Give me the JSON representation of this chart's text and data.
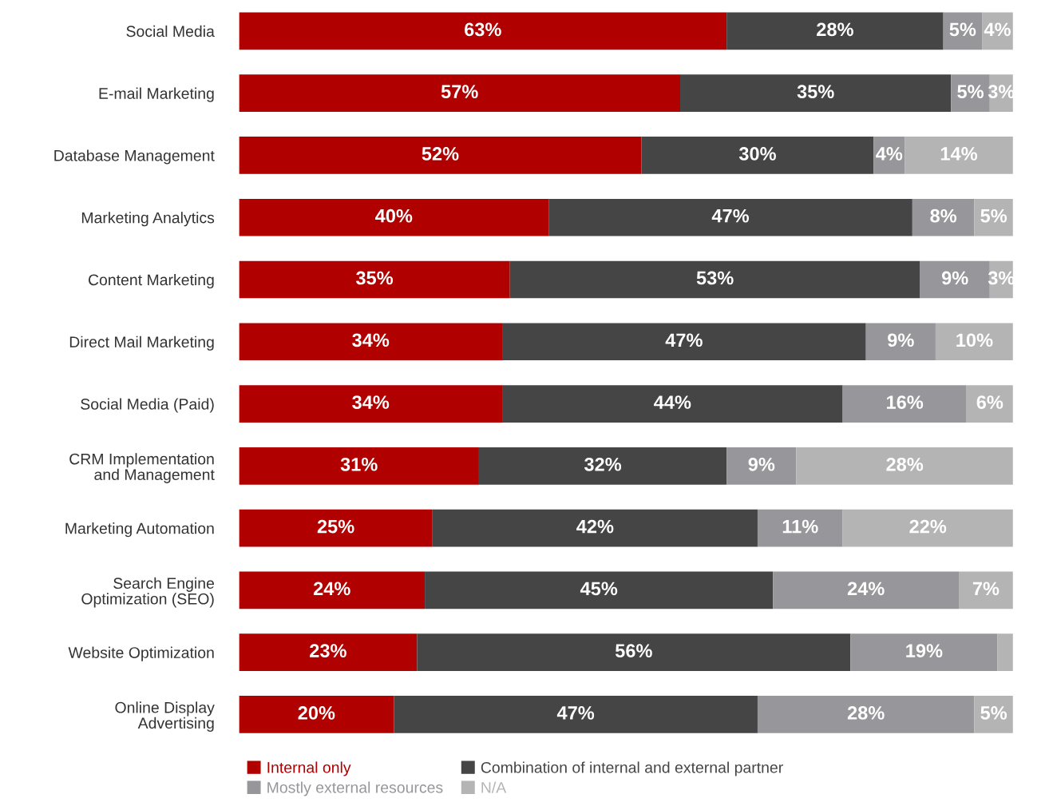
{
  "chart_data": {
    "type": "bar",
    "orientation": "horizontal",
    "stacked": true,
    "legend": "bottom",
    "grid": false,
    "categories": [
      "Social Media",
      "E-mail Marketing",
      "Database Management",
      "Marketing Analytics",
      "Content Marketing",
      "Direct Mail Marketing",
      "Social Media (Paid)",
      "CRM Implementation\nand Management",
      "Marketing Automation",
      "Search Engine\nOptimization (SEO)",
      "Website Optimization",
      "Online Display\nAdvertising"
    ],
    "series": [
      {
        "name": "Internal only",
        "color": "#b00000",
        "values": [
          63,
          57,
          52,
          40,
          35,
          34,
          34,
          31,
          25,
          24,
          23,
          20
        ],
        "value_labels": [
          "63%",
          "57%",
          "52%",
          "40%",
          "35%",
          "34%",
          "34%",
          "31%",
          "25%",
          "24%",
          "23%",
          "20%"
        ]
      },
      {
        "name": "Combination of internal and external partner",
        "color": "#454545",
        "values": [
          28,
          35,
          30,
          47,
          53,
          47,
          44,
          32,
          42,
          45,
          56,
          47
        ],
        "value_labels": [
          "28%",
          "35%",
          "30%",
          "47%",
          "53%",
          "47%",
          "44%",
          "32%",
          "42%",
          "45%",
          "56%",
          "47%"
        ]
      },
      {
        "name": "Mostly external resources",
        "color": "#97979b",
        "values": [
          5,
          5,
          4,
          8,
          9,
          9,
          16,
          9,
          11,
          24,
          19,
          28
        ],
        "value_labels": [
          "5%",
          "5%",
          "4%",
          "8%",
          "9%",
          "9%",
          "16%",
          "9%",
          "11%",
          "24%",
          "19%",
          "28%"
        ]
      },
      {
        "name": "N/A",
        "color": "#b4b4b4",
        "values": [
          4,
          3,
          14,
          5,
          3,
          10,
          6,
          28,
          22,
          7,
          2,
          5
        ],
        "value_labels": [
          "4%",
          "3%",
          "14%",
          "5%",
          "3%",
          "10%",
          "6%",
          "28%",
          "22%",
          "7%",
          null,
          "5%"
        ]
      }
    ]
  }
}
